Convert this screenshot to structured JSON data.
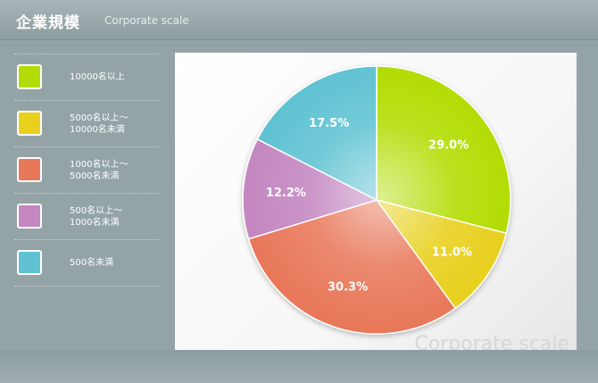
{
  "header": {
    "title": "企業規模",
    "subtitle": "Corporate scale"
  },
  "watermark": "Corporate scale",
  "legend": [
    {
      "label": "10000名以上",
      "color": "#b2dc05"
    },
    {
      "label": "5000名以上～\n10000名未満",
      "color": "#e8d01c"
    },
    {
      "label": "1000名以上～\n5000名未満",
      "color": "#e8785a"
    },
    {
      "label": "500名以上～\n1000名未満",
      "color": "#c487c1"
    },
    {
      "label": "500名未満",
      "color": "#5fc2d2"
    }
  ],
  "chart_data": {
    "type": "pie",
    "categories": [
      "10000名以上",
      "5000名以上～10000名未満",
      "1000名以上～5000名未満",
      "500名以上～1000名未満",
      "500名未満"
    ],
    "values": [
      29.0,
      11.0,
      30.3,
      12.2,
      17.5
    ],
    "data_labels": [
      "29.0%",
      "11.0%",
      "30.3%",
      "12.2%",
      "17.5%"
    ],
    "colors": [
      "#b2dc05",
      "#e8d01c",
      "#e8785a",
      "#c487c1",
      "#5fc2d2"
    ],
    "start": "12 o'clock",
    "direction": "clockwise"
  }
}
